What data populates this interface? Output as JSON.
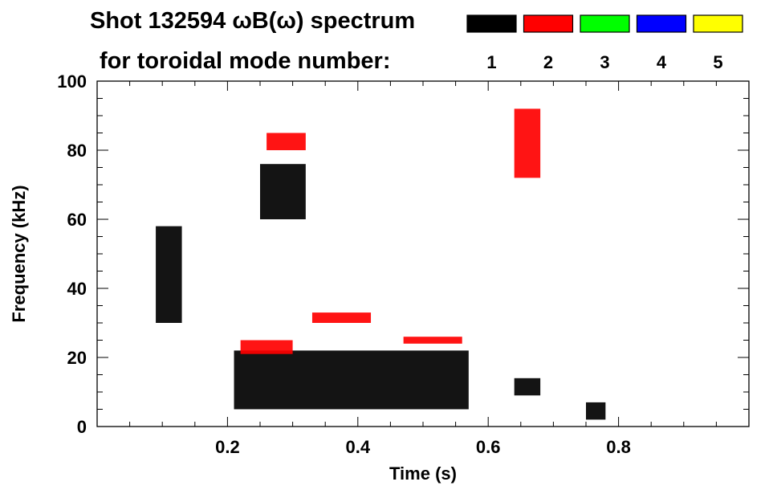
{
  "chart_data": {
    "type": "heatmap",
    "title_line1": "Shot 132594 ωB(ω) spectrum",
    "title_line2": "for toroidal mode number:",
    "xlabel": "Time (s)",
    "ylabel": "Frequency (kHz)",
    "xlim": [
      0.0,
      1.0
    ],
    "ylim": [
      0,
      100
    ],
    "x_ticks": [
      0.2,
      0.4,
      0.6,
      0.8
    ],
    "y_ticks": [
      0,
      20,
      40,
      60,
      80,
      100
    ],
    "legend": [
      {
        "label": "1",
        "color": "#000000"
      },
      {
        "label": "2",
        "color": "#ff0000"
      },
      {
        "label": "3",
        "color": "#00ff00"
      },
      {
        "label": "4",
        "color": "#0000ff"
      },
      {
        "label": "5",
        "color": "#ffff00"
      }
    ],
    "mode_regions": [
      {
        "n": 1,
        "t": [
          0.09,
          0.13
        ],
        "f": [
          30,
          58
        ]
      },
      {
        "n": 1,
        "t": [
          0.21,
          0.57
        ],
        "f": [
          5,
          22
        ]
      },
      {
        "n": 1,
        "t": [
          0.25,
          0.32
        ],
        "f": [
          60,
          76
        ]
      },
      {
        "n": 1,
        "t": [
          0.64,
          0.68
        ],
        "f": [
          9,
          14
        ]
      },
      {
        "n": 1,
        "t": [
          0.75,
          0.78
        ],
        "f": [
          2,
          7
        ]
      },
      {
        "n": 2,
        "t": [
          0.22,
          0.3
        ],
        "f": [
          21,
          25
        ]
      },
      {
        "n": 2,
        "t": [
          0.26,
          0.32
        ],
        "f": [
          80,
          85
        ]
      },
      {
        "n": 2,
        "t": [
          0.33,
          0.42
        ],
        "f": [
          30,
          33
        ]
      },
      {
        "n": 2,
        "t": [
          0.47,
          0.56
        ],
        "f": [
          24,
          26
        ]
      },
      {
        "n": 2,
        "t": [
          0.64,
          0.68
        ],
        "f": [
          72,
          92
        ]
      }
    ]
  }
}
